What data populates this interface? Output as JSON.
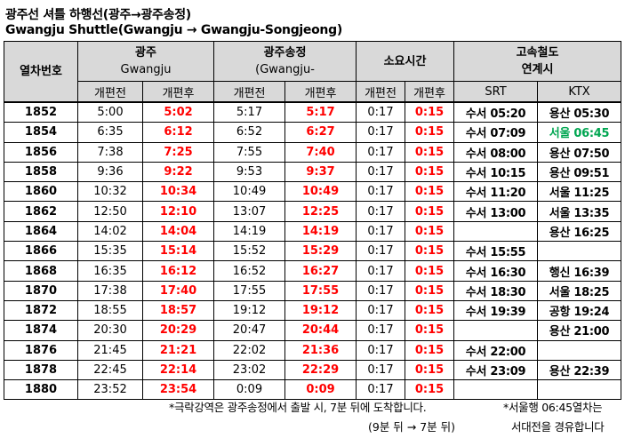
{
  "title_ko": "광주선 셔틀 하행선(광주→광주송정)",
  "title_en": "Gwangju Shuttle(Gwangju → Gwangju-Songjeong)",
  "headers": {
    "train_no": "열차번호",
    "gwangju_ko": "광주",
    "gwangju_en": "Gwangju",
    "songjeong_ko": "광주송정",
    "songjeong_en": "(Gwangju-",
    "duration": "소요시간",
    "connection_line1": "고속철도",
    "connection_line2": "연계시",
    "before": "개편전",
    "after": "개편후",
    "srt": "SRT",
    "ktx": "KTX"
  },
  "rows": [
    {
      "no": "1852",
      "g_before": "5:00",
      "g_after": "5:02",
      "s_before": "5:17",
      "s_after": "5:17",
      "d_before": "0:17",
      "d_after": "0:15",
      "srt": "수서 05:20",
      "ktx": "용산 05:30",
      "ktx_color": "#000000"
    },
    {
      "no": "1854",
      "g_before": "6:35",
      "g_after": "6:12",
      "s_before": "6:52",
      "s_after": "6:27",
      "d_before": "0:17",
      "d_after": "0:15",
      "srt": "수서 07:09",
      "ktx": "서울 06:45",
      "ktx_color": "#00a651"
    },
    {
      "no": "1856",
      "g_before": "7:38",
      "g_after": "7:25",
      "s_before": "7:55",
      "s_after": "7:40",
      "d_before": "0:17",
      "d_after": "0:15",
      "srt": "수서 08:00",
      "ktx": "용산 07:50",
      "ktx_color": "#000000"
    },
    {
      "no": "1858",
      "g_before": "9:36",
      "g_after": "9:22",
      "s_before": "9:53",
      "s_after": "9:37",
      "d_before": "0:17",
      "d_after": "0:15",
      "srt": "수서 10:15",
      "ktx": "용산 09:51",
      "ktx_color": "#000000"
    },
    {
      "no": "1860",
      "g_before": "10:32",
      "g_after": "10:34",
      "s_before": "10:49",
      "s_after": "10:49",
      "d_before": "0:17",
      "d_after": "0:15",
      "srt": "수서 11:20",
      "ktx": "서울 11:25",
      "ktx_color": "#000000"
    },
    {
      "no": "1862",
      "g_before": "12:50",
      "g_after": "12:10",
      "s_before": "13:07",
      "s_after": "12:25",
      "d_before": "0:17",
      "d_after": "0:15",
      "srt": "수서 13:00",
      "ktx": "서울 13:35",
      "ktx_color": "#000000"
    },
    {
      "no": "1864",
      "g_before": "14:02",
      "g_after": "14:04",
      "s_before": "14:19",
      "s_after": "14:19",
      "d_before": "0:17",
      "d_after": "0:15",
      "srt": "",
      "ktx": "용산 16:25",
      "ktx_color": "#000000"
    },
    {
      "no": "1866",
      "g_before": "15:35",
      "g_after": "15:14",
      "s_before": "15:52",
      "s_after": "15:29",
      "d_before": "0:17",
      "d_after": "0:15",
      "srt": "수서 15:55",
      "ktx": "",
      "ktx_color": "#000000"
    },
    {
      "no": "1868",
      "g_before": "16:35",
      "g_after": "16:12",
      "s_before": "16:52",
      "s_after": "16:27",
      "d_before": "0:17",
      "d_after": "0:15",
      "srt": "수서 16:30",
      "ktx": "행신 16:39",
      "ktx_color": "#000000"
    },
    {
      "no": "1870",
      "g_before": "17:38",
      "g_after": "17:40",
      "s_before": "17:55",
      "s_after": "17:55",
      "d_before": "0:17",
      "d_after": "0:15",
      "srt": "수서 18:30",
      "ktx": "서울 18:25",
      "ktx_color": "#000000"
    },
    {
      "no": "1872",
      "g_before": "18:55",
      "g_after": "18:57",
      "s_before": "19:12",
      "s_after": "19:12",
      "d_before": "0:17",
      "d_after": "0:15",
      "srt": "수서 19:39",
      "ktx": "공항 19:24",
      "ktx_color": "#000000"
    },
    {
      "no": "1874",
      "g_before": "20:30",
      "g_after": "20:29",
      "s_before": "20:47",
      "s_after": "20:44",
      "d_before": "0:17",
      "d_after": "0:15",
      "srt": "",
      "ktx": "용산 21:00",
      "ktx_color": "#000000"
    },
    {
      "no": "1876",
      "g_before": "21:45",
      "g_after": "21:21",
      "s_before": "22:02",
      "s_after": "21:36",
      "d_before": "0:17",
      "d_after": "0:15",
      "srt": "수서 22:00",
      "ktx": "",
      "ktx_color": "#000000"
    },
    {
      "no": "1878",
      "g_before": "22:45",
      "g_after": "22:14",
      "s_before": "23:02",
      "s_after": "22:29",
      "d_before": "0:17",
      "d_after": "0:15",
      "srt": "수서 23:09",
      "ktx": "용산 22:39",
      "ktx_color": "#000000"
    },
    {
      "no": "1880",
      "g_before": "23:52",
      "g_after": "23:54",
      "s_before": "0:09",
      "s_after": "0:09",
      "d_before": "0:17",
      "d_after": "0:15",
      "srt": "",
      "ktx": "",
      "ktx_color": "#000000"
    }
  ],
  "notes": {
    "note1": "*극락강역은 광주송정에서 출발 시, 7분 뒤에 도착합니다.",
    "note2": "(9분 뒤 → 7분 뒤)",
    "note3": "*서울행 06:45열차는",
    "note4": "서대전을 경유합니다"
  },
  "colors": {
    "header_bg": "#d9d9d9",
    "after_text": "#ff0000",
    "highlight_green": "#00a651"
  }
}
